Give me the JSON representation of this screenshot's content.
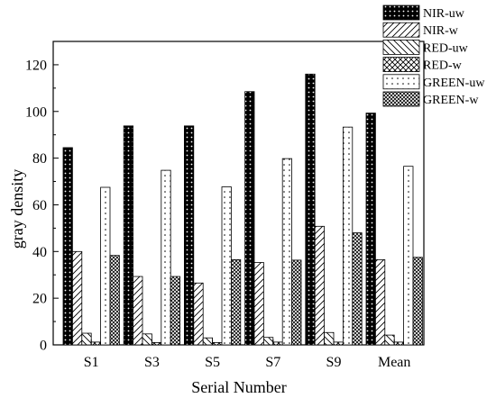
{
  "chart_data": {
    "type": "bar",
    "title": "",
    "xlabel": "Serial Number",
    "ylabel": "gray density",
    "ylim": [
      0,
      130
    ],
    "yticks": [
      0,
      20,
      40,
      60,
      80,
      100,
      120
    ],
    "categories": [
      "S1",
      "S3",
      "S5",
      "S7",
      "S9",
      "Mean"
    ],
    "legend_position": "top-right, outside plot",
    "series": [
      {
        "name": "NIR-uw",
        "pattern": "dotted-black",
        "values": [
          84.5,
          93.8,
          93.8,
          108.5,
          116,
          99.3
        ]
      },
      {
        "name": "NIR-w",
        "pattern": "forward-hatch",
        "values": [
          40,
          29.3,
          26.5,
          35.3,
          50.8,
          36.5
        ]
      },
      {
        "name": "RED-uw",
        "pattern": "back-hatch",
        "values": [
          5,
          4.7,
          3,
          3.2,
          5.3,
          4.2
        ]
      },
      {
        "name": "RED-w",
        "pattern": "cross-hatch",
        "values": [
          1.2,
          1,
          1,
          1.2,
          1.2,
          1.2
        ]
      },
      {
        "name": "GREEN-uw",
        "pattern": "sparse-dots",
        "values": [
          67.5,
          74.8,
          67.7,
          79.8,
          93.3,
          76.5
        ]
      },
      {
        "name": "GREEN-w",
        "pattern": "dense-crosshatch",
        "values": [
          38.3,
          29.3,
          36.5,
          36.3,
          48,
          37.5
        ]
      }
    ]
  }
}
